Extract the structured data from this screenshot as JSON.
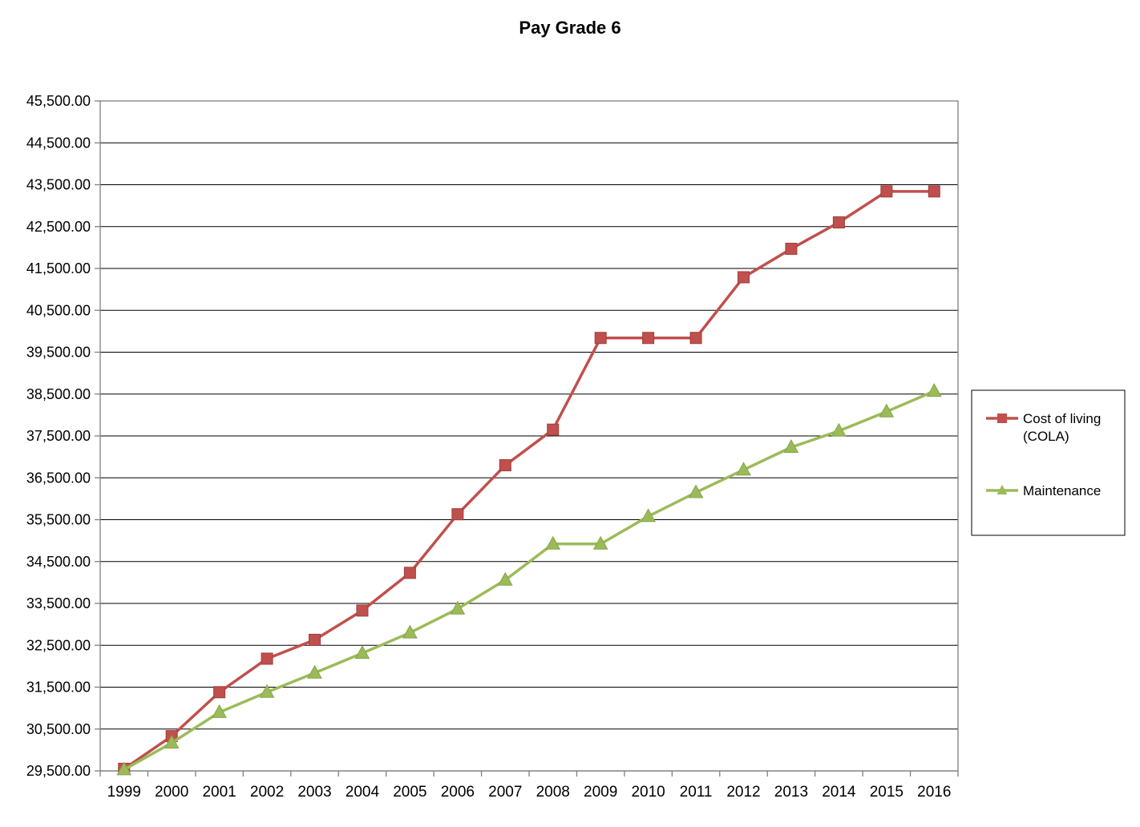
{
  "chart_data": {
    "type": "line",
    "title": "Pay Grade 6",
    "xlabel": "",
    "ylabel": "",
    "categories": [
      "1999",
      "2000",
      "2001",
      "2002",
      "2003",
      "2004",
      "2005",
      "2006",
      "2007",
      "2008",
      "2009",
      "2010",
      "2011",
      "2012",
      "2013",
      "2014",
      "2015",
      "2016"
    ],
    "ylim": [
      29500,
      45500
    ],
    "y_ticks": [
      "29,500.00",
      "30,500.00",
      "31,500.00",
      "32,500.00",
      "33,500.00",
      "34,500.00",
      "35,500.00",
      "36,500.00",
      "37,500.00",
      "38,500.00",
      "39,500.00",
      "40,500.00",
      "41,500.00",
      "42,500.00",
      "43,500.00",
      "44,500.00",
      "45,500.00"
    ],
    "grid": true,
    "legend_position": "right",
    "series": [
      {
        "name": "Cost of living (COLA)",
        "legend_lines": [
          "Cost of living",
          "(COLA)"
        ],
        "color": "#C0504D",
        "marker": "square",
        "values": [
          29550,
          30330,
          31380,
          32180,
          32630,
          33330,
          34230,
          35630,
          36800,
          37650,
          39840,
          39840,
          39840,
          41290,
          41970,
          42600,
          43340,
          43340
        ]
      },
      {
        "name": "Maintenance",
        "legend_lines": [
          "Maintenance"
        ],
        "color": "#9BBB59",
        "marker": "triangle",
        "values": [
          29530,
          30170,
          30900,
          31380,
          31840,
          32310,
          32800,
          33370,
          34060,
          34920,
          34920,
          35580,
          36150,
          36690,
          37230,
          37620,
          38080,
          38570
        ]
      }
    ]
  }
}
